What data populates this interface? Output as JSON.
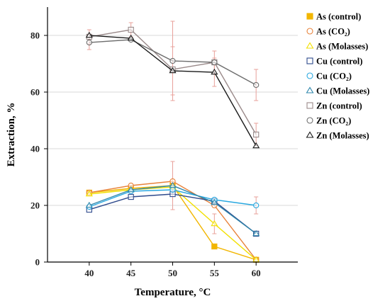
{
  "chart_data": {
    "type": "line",
    "title": "",
    "xlabel": "Temperature,  °C",
    "ylabel": "Extraction, %",
    "x": [
      40,
      45,
      50,
      55,
      60
    ],
    "xlim": [
      35,
      65
    ],
    "ylim": [
      0,
      90
    ],
    "yticks": [
      0,
      20,
      40,
      60,
      80
    ],
    "grid": "horizontal",
    "legend_position": "right",
    "series": [
      {
        "name": "As (control)",
        "marker": "square",
        "color": "#F2B600",
        "fill": "#F2B600",
        "values": [
          24.5,
          26.0,
          27.0,
          5.5,
          0.8
        ],
        "errors": [
          0,
          0,
          0,
          0,
          0
        ]
      },
      {
        "name": "As (CO₂)",
        "marker": "circle",
        "color": "#E8823A",
        "fill": "none",
        "values": [
          24.5,
          27.0,
          28.5,
          20.0,
          0.8
        ],
        "errors": [
          0,
          0,
          0,
          0,
          0
        ]
      },
      {
        "name": "As (Molasses)",
        "marker": "triangle",
        "color": "#F2E000",
        "fill": "none",
        "values": [
          24.0,
          25.5,
          26.5,
          13.5,
          0.8
        ],
        "errors": [
          0,
          0,
          0,
          3.5,
          0
        ]
      },
      {
        "name": "Cu (control)",
        "marker": "square",
        "color": "#2E4A8C",
        "fill": "none",
        "values": [
          18.5,
          23.0,
          24.0,
          21.5,
          10.0
        ],
        "errors": [
          0,
          0,
          0,
          0,
          0
        ]
      },
      {
        "name": "Cu (CO₂)",
        "marker": "circle",
        "color": "#2AA8E0",
        "fill": "none",
        "values": [
          19.5,
          25.0,
          25.5,
          22.0,
          20.0
        ],
        "errors": [
          0,
          0,
          0,
          0,
          3.0
        ]
      },
      {
        "name": "Cu (Molasses)",
        "marker": "triangle",
        "color": "#2E86AB",
        "fill": "none",
        "values": [
          20.0,
          25.5,
          27.0,
          21.0,
          10.0
        ],
        "errors": [
          0,
          0,
          8.5,
          0,
          0
        ]
      },
      {
        "name": "Zn (control)",
        "marker": "square",
        "color": "#9A8A8A",
        "fill": "none",
        "values": [
          79.5,
          82.0,
          68.0,
          70.5,
          45.0
        ],
        "errors": [
          2.5,
          2.5,
          0,
          0,
          4.0
        ]
      },
      {
        "name": "Zn (CO₂)",
        "marker": "circle",
        "color": "#6E6E6E",
        "fill": "none",
        "values": [
          77.5,
          78.5,
          71.0,
          70.5,
          62.5
        ],
        "errors": [
          2.5,
          0,
          14.0,
          4.0,
          5.5
        ]
      },
      {
        "name": "Zn (Molasses)",
        "marker": "triangle",
        "color": "#1A1A1A",
        "fill": "none",
        "values": [
          80.0,
          79.0,
          67.5,
          67.0,
          41.0
        ],
        "errors": [
          0,
          0,
          8.5,
          5.0,
          0
        ]
      }
    ]
  },
  "colors": {
    "gridline": "#d9d9d9",
    "axis": "#000000",
    "errorbar": "#e8a09a"
  }
}
